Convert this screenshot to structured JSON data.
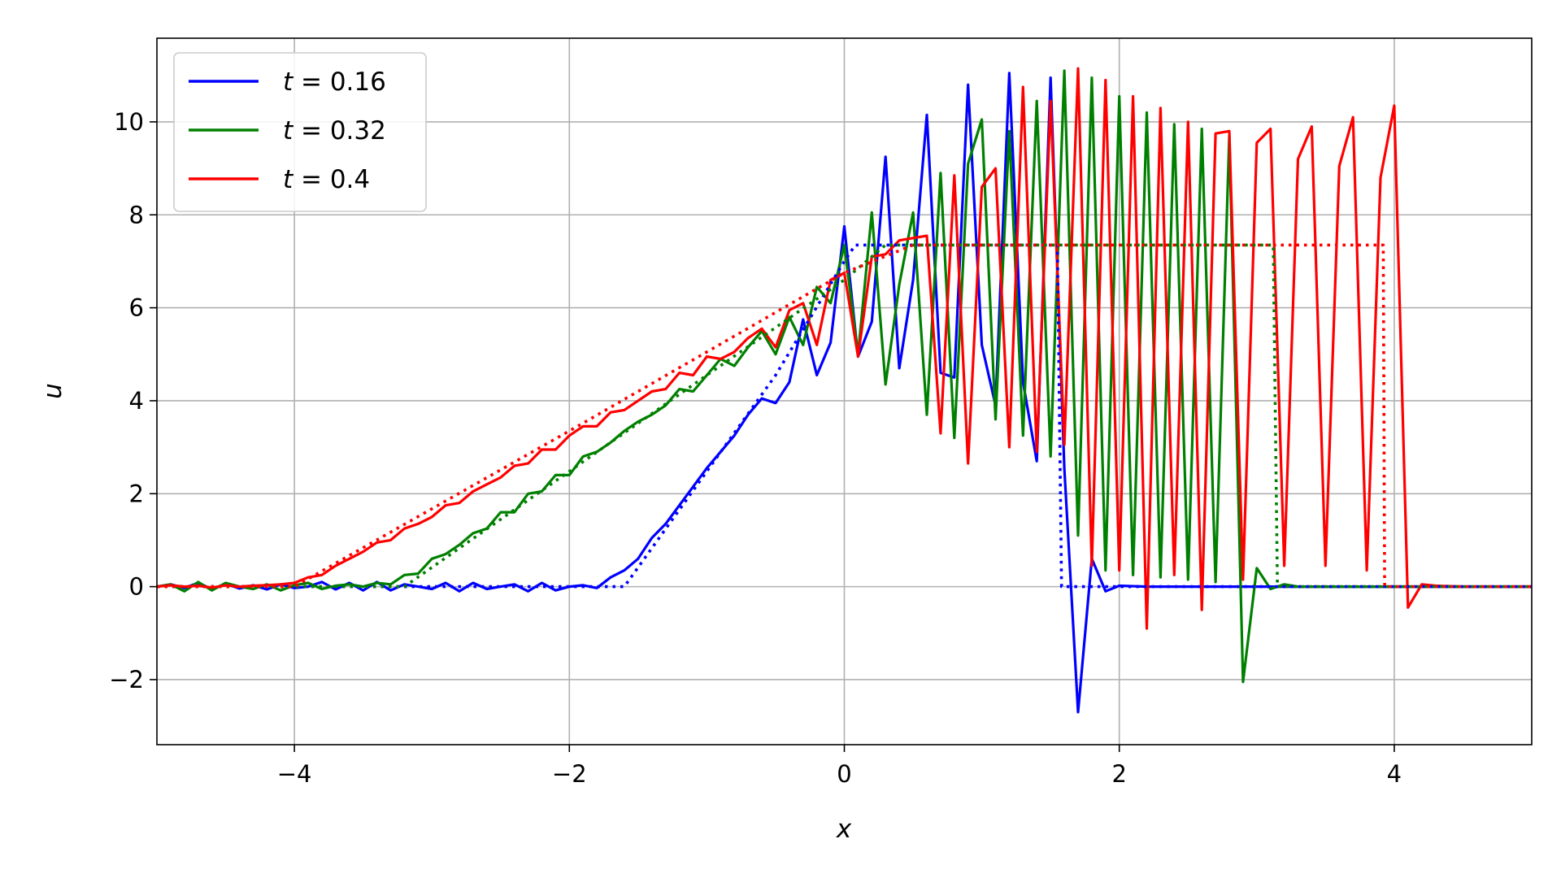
{
  "chart_data": {
    "type": "line",
    "title": "",
    "xlabel": "x",
    "ylabel": "u",
    "xlim": [
      -5,
      5
    ],
    "ylim": [
      -3.4,
      11.8
    ],
    "xticks": [
      -4,
      -2,
      0,
      2,
      4
    ],
    "yticks": [
      -2,
      0,
      2,
      4,
      6,
      8,
      10
    ],
    "xtick_labels": [
      "−4",
      "−2",
      "0",
      "2",
      "4"
    ],
    "ytick_labels": [
      "−2",
      "0",
      "2",
      "4",
      "6",
      "8",
      "10"
    ],
    "grid": true,
    "legend_position": "top-left",
    "legend": [
      {
        "var": "t",
        "rest": " = 0.16",
        "color": "#0000ff"
      },
      {
        "var": "t",
        "rest": " = 0.32",
        "color": "#008000"
      },
      {
        "var": "t",
        "rest": " = 0.4",
        "color": "#ff0000"
      }
    ],
    "series": [
      {
        "name": "t = 0.16",
        "color": "#0000ff",
        "style": "solid",
        "x": [
          -5.0,
          -4.9,
          -4.8,
          -4.7,
          -4.6,
          -4.5,
          -4.4,
          -4.3,
          -4.2,
          -4.1,
          -4.0,
          -3.9,
          -3.8,
          -3.7,
          -3.6,
          -3.5,
          -3.4,
          -3.3,
          -3.2,
          -3.1,
          -3.0,
          -2.9,
          -2.8,
          -2.7,
          -2.6,
          -2.5,
          -2.4,
          -2.3,
          -2.2,
          -2.1,
          -2.0,
          -1.9,
          -1.8,
          -1.7,
          -1.6,
          -1.5,
          -1.4,
          -1.3,
          -1.2,
          -1.1,
          -1.0,
          -0.9,
          -0.8,
          -0.7,
          -0.6,
          -0.5,
          -0.4,
          -0.3,
          -0.2,
          -0.1,
          0.0,
          0.1,
          0.2,
          0.3,
          0.4,
          0.5,
          0.6,
          0.7,
          0.8,
          0.9,
          1.0,
          1.1,
          1.2,
          1.3,
          1.4,
          1.5,
          1.6,
          1.7,
          1.8,
          1.9,
          2.0,
          2.2,
          2.5,
          3.0,
          3.5,
          4.0,
          4.5,
          5.0
        ],
        "y": [
          0.0,
          0.05,
          -0.03,
          0.08,
          -0.05,
          0.06,
          -0.04,
          0.03,
          -0.06,
          0.05,
          -0.03,
          0.0,
          0.1,
          -0.06,
          0.08,
          -0.08,
          0.1,
          -0.08,
          0.05,
          0.0,
          -0.05,
          0.08,
          -0.1,
          0.08,
          -0.05,
          0.0,
          0.05,
          -0.1,
          0.08,
          -0.08,
          0.0,
          0.03,
          -0.03,
          0.2,
          0.35,
          0.6,
          1.05,
          1.35,
          1.75,
          2.15,
          2.55,
          2.9,
          3.25,
          3.7,
          4.05,
          3.95,
          4.4,
          5.75,
          4.55,
          5.25,
          7.75,
          4.95,
          5.7,
          9.25,
          4.7,
          6.6,
          10.15,
          4.6,
          4.5,
          10.8,
          5.2,
          3.9,
          11.05,
          4.4,
          2.7,
          10.95,
          2.55,
          -2.7,
          0.6,
          -0.1,
          0.02,
          0.0,
          0.0,
          0.0,
          0.0,
          0.0,
          0.0,
          0.0
        ]
      },
      {
        "name": "t = 0.32",
        "color": "#008000",
        "style": "solid",
        "x": [
          -5.0,
          -4.9,
          -4.8,
          -4.7,
          -4.6,
          -4.5,
          -4.4,
          -4.3,
          -4.2,
          -4.1,
          -4.0,
          -3.9,
          -3.8,
          -3.7,
          -3.6,
          -3.5,
          -3.4,
          -3.3,
          -3.2,
          -3.1,
          -3.0,
          -2.9,
          -2.8,
          -2.7,
          -2.6,
          -2.5,
          -2.4,
          -2.3,
          -2.2,
          -2.1,
          -2.0,
          -1.9,
          -1.8,
          -1.7,
          -1.6,
          -1.5,
          -1.4,
          -1.3,
          -1.2,
          -1.1,
          -1.0,
          -0.9,
          -0.8,
          -0.7,
          -0.6,
          -0.5,
          -0.4,
          -0.3,
          -0.2,
          -0.1,
          0.0,
          0.1,
          0.2,
          0.3,
          0.4,
          0.5,
          0.6,
          0.7,
          0.8,
          0.9,
          1.0,
          1.1,
          1.2,
          1.3,
          1.4,
          1.5,
          1.6,
          1.7,
          1.8,
          1.9,
          2.0,
          2.1,
          2.2,
          2.3,
          2.4,
          2.5,
          2.6,
          2.7,
          2.8,
          2.9,
          3.0,
          3.1,
          3.2,
          3.3,
          3.4,
          3.5,
          3.6,
          3.8,
          4.0,
          4.5,
          5.0
        ],
        "y": [
          0.0,
          0.05,
          -0.1,
          0.1,
          -0.08,
          0.08,
          0.0,
          -0.05,
          0.05,
          -0.08,
          0.03,
          0.08,
          -0.05,
          0.02,
          0.05,
          0.0,
          0.08,
          0.05,
          0.25,
          0.28,
          0.6,
          0.7,
          0.9,
          1.15,
          1.25,
          1.6,
          1.6,
          2.0,
          2.05,
          2.4,
          2.4,
          2.8,
          2.9,
          3.1,
          3.35,
          3.55,
          3.7,
          3.9,
          4.25,
          4.2,
          4.55,
          4.9,
          4.75,
          5.15,
          5.5,
          5.0,
          5.8,
          5.2,
          6.45,
          6.1,
          7.35,
          5.0,
          8.05,
          4.35,
          6.5,
          8.05,
          3.7,
          8.9,
          3.2,
          9.1,
          10.05,
          3.6,
          9.8,
          3.25,
          10.45,
          2.8,
          11.1,
          1.1,
          10.95,
          0.35,
          10.55,
          0.25,
          10.2,
          0.2,
          9.95,
          0.15,
          9.85,
          0.1,
          9.7,
          -2.05,
          0.4,
          -0.05,
          0.05,
          0.0,
          0.0,
          0.0,
          0.0,
          0.0,
          0.0,
          0.0,
          0.0
        ]
      },
      {
        "name": "t = 0.4",
        "color": "#ff0000",
        "style": "solid",
        "x": [
          -5.0,
          -4.9,
          -4.8,
          -4.7,
          -4.6,
          -4.5,
          -4.4,
          -4.3,
          -4.2,
          -4.1,
          -4.0,
          -3.9,
          -3.8,
          -3.7,
          -3.6,
          -3.5,
          -3.4,
          -3.3,
          -3.2,
          -3.1,
          -3.0,
          -2.9,
          -2.8,
          -2.7,
          -2.6,
          -2.5,
          -2.4,
          -2.3,
          -2.2,
          -2.1,
          -2.0,
          -1.9,
          -1.8,
          -1.7,
          -1.6,
          -1.5,
          -1.4,
          -1.3,
          -1.2,
          -1.1,
          -1.0,
          -0.9,
          -0.8,
          -0.7,
          -0.6,
          -0.5,
          -0.4,
          -0.3,
          -0.2,
          -0.1,
          0.0,
          0.1,
          0.2,
          0.3,
          0.4,
          0.5,
          0.6,
          0.7,
          0.8,
          0.9,
          1.0,
          1.1,
          1.2,
          1.3,
          1.4,
          1.5,
          1.6,
          1.7,
          1.8,
          1.9,
          2.0,
          2.1,
          2.2,
          2.3,
          2.4,
          2.5,
          2.6,
          2.7,
          2.8,
          2.9,
          3.0,
          3.1,
          3.2,
          3.3,
          3.4,
          3.5,
          3.6,
          3.7,
          3.8,
          3.9,
          4.0,
          4.1,
          4.2,
          4.3,
          4.5,
          5.0
        ],
        "y": [
          0.0,
          0.03,
          0.0,
          0.02,
          -0.02,
          0.03,
          0.0,
          0.02,
          0.03,
          0.05,
          0.08,
          0.2,
          0.25,
          0.45,
          0.6,
          0.75,
          0.95,
          1.0,
          1.25,
          1.35,
          1.5,
          1.75,
          1.8,
          2.05,
          2.2,
          2.35,
          2.6,
          2.65,
          2.95,
          2.95,
          3.25,
          3.45,
          3.45,
          3.75,
          3.8,
          4.0,
          4.2,
          4.25,
          4.6,
          4.55,
          4.95,
          4.9,
          5.05,
          5.35,
          5.55,
          5.15,
          5.95,
          6.1,
          5.2,
          6.6,
          6.75,
          4.95,
          7.1,
          7.15,
          7.45,
          7.5,
          7.55,
          3.3,
          8.85,
          2.65,
          8.6,
          9.0,
          3.0,
          10.75,
          2.9,
          10.45,
          3.05,
          11.15,
          0.45,
          10.9,
          0.35,
          10.55,
          -0.9,
          10.3,
          0.25,
          10.0,
          -0.5,
          9.75,
          9.8,
          0.15,
          9.55,
          9.85,
          0.45,
          9.2,
          9.9,
          0.45,
          9.05,
          10.1,
          0.35,
          8.8,
          10.35,
          -0.45,
          0.05,
          0.02,
          0.0,
          0.0
        ]
      },
      {
        "name": "",
        "color": "#0000ff",
        "style": "dotted",
        "x": [
          -5.0,
          -1.6,
          -0.5,
          0.0,
          0.08,
          1.55,
          1.58,
          1.6,
          5.0
        ],
        "y": [
          0.0,
          0.0,
          4.55,
          7.0,
          7.35,
          7.35,
          0.0,
          0.0,
          0.0
        ]
      },
      {
        "name": "",
        "color": "#008000",
        "style": "dotted",
        "x": [
          -5.0,
          -3.2,
          -1.0,
          0.0,
          0.3,
          3.12,
          3.15,
          3.2,
          5.0
        ],
        "y": [
          0.0,
          0.0,
          4.55,
          6.6,
          7.35,
          7.35,
          0.0,
          0.0,
          0.0
        ]
      },
      {
        "name": "",
        "color": "#ff0000",
        "style": "dotted",
        "x": [
          -5.0,
          -4.0,
          -2.0,
          0.0,
          0.5,
          3.92,
          3.93,
          4.0,
          5.0
        ],
        "y": [
          0.0,
          0.0,
          3.35,
          6.75,
          7.35,
          7.35,
          0.0,
          0.0,
          0.0
        ]
      }
    ]
  }
}
